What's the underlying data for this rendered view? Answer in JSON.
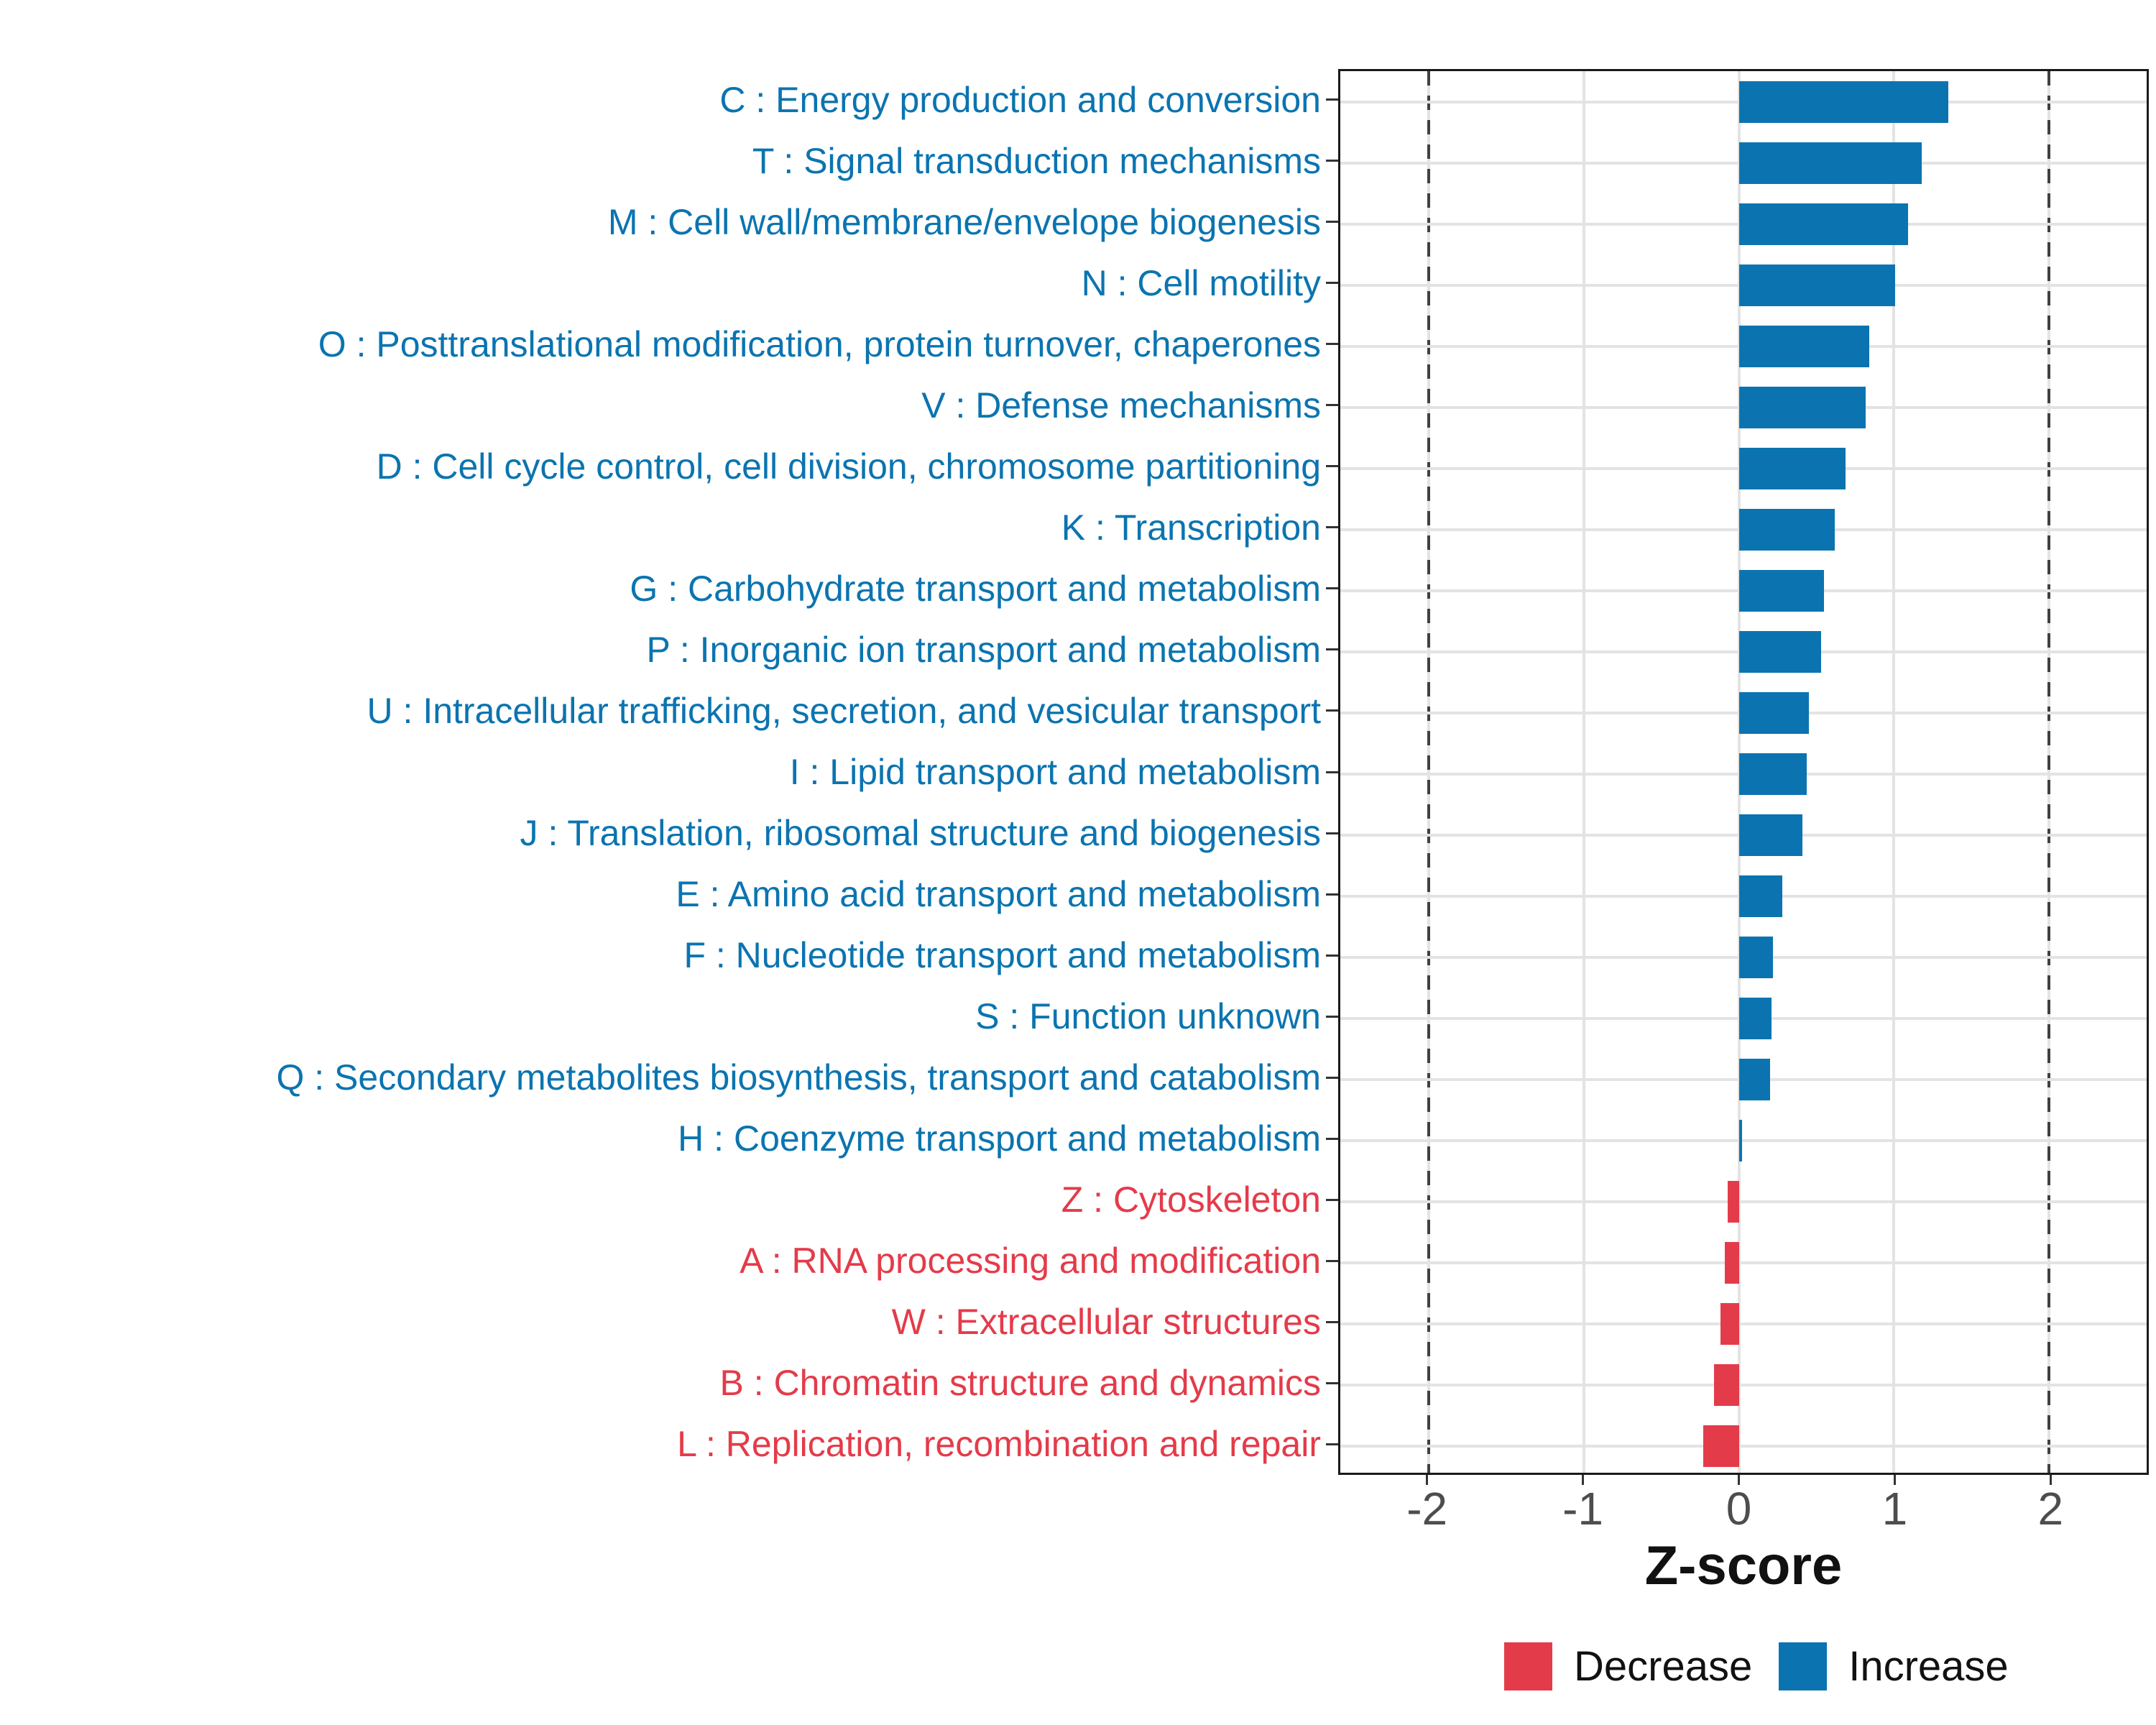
{
  "chart_data": {
    "type": "bar",
    "orientation": "horizontal",
    "xlabel": "Z-score",
    "xlim": [
      -2.57,
      2.63
    ],
    "x_ticks": [
      -2,
      -1,
      0,
      1,
      2
    ],
    "x_tick_labels": [
      "-2",
      "-1",
      "0",
      "1",
      "2"
    ],
    "dashed_guides": [
      -2,
      2
    ],
    "grid": true,
    "legend_position": "bottom-right",
    "bars": [
      {
        "label": "C : Energy production and conversion",
        "value": 1.35,
        "direction": "increase"
      },
      {
        "label": "T : Signal transduction mechanisms",
        "value": 1.18,
        "direction": "increase"
      },
      {
        "label": "M : Cell wall/membrane/envelope biogenesis",
        "value": 1.09,
        "direction": "increase"
      },
      {
        "label": "N : Cell motility",
        "value": 1.01,
        "direction": "increase"
      },
      {
        "label": "O : Posttranslational modification, protein turnover, chaperones",
        "value": 0.84,
        "direction": "increase"
      },
      {
        "label": "V : Defense mechanisms",
        "value": 0.82,
        "direction": "increase"
      },
      {
        "label": "D : Cell cycle control, cell division, chromosome partitioning",
        "value": 0.69,
        "direction": "increase"
      },
      {
        "label": "K : Transcription",
        "value": 0.62,
        "direction": "increase"
      },
      {
        "label": "G : Carbohydrate transport and metabolism",
        "value": 0.55,
        "direction": "increase"
      },
      {
        "label": "P : Inorganic ion transport and metabolism",
        "value": 0.53,
        "direction": "increase"
      },
      {
        "label": "U : Intracellular trafficking, secretion, and vesicular transport",
        "value": 0.45,
        "direction": "increase"
      },
      {
        "label": "I : Lipid transport and metabolism",
        "value": 0.44,
        "direction": "increase"
      },
      {
        "label": "J : Translation, ribosomal structure and biogenesis",
        "value": 0.41,
        "direction": "increase"
      },
      {
        "label": "E : Amino acid transport and metabolism",
        "value": 0.28,
        "direction": "increase"
      },
      {
        "label": "F : Nucleotide transport and metabolism",
        "value": 0.22,
        "direction": "increase"
      },
      {
        "label": "S : Function unknown",
        "value": 0.21,
        "direction": "increase"
      },
      {
        "label": "Q : Secondary metabolites biosynthesis, transport and catabolism",
        "value": 0.2,
        "direction": "increase"
      },
      {
        "label": "H : Coenzyme transport and metabolism",
        "value": 0.02,
        "direction": "increase"
      },
      {
        "label": "Z : Cytoskeleton",
        "value": -0.07,
        "direction": "decrease"
      },
      {
        "label": "A : RNA processing and modification",
        "value": -0.09,
        "direction": "decrease"
      },
      {
        "label": "W : Extracellular structures",
        "value": -0.12,
        "direction": "decrease"
      },
      {
        "label": "B : Chromatin structure and dynamics",
        "value": -0.16,
        "direction": "decrease"
      },
      {
        "label": "L : Replication, recombination and repair",
        "value": -0.23,
        "direction": "decrease"
      }
    ]
  },
  "legend": {
    "decrease_label": "Decrease",
    "increase_label": "Increase"
  },
  "colors": {
    "increase": "#0B74B0",
    "decrease": "#E43B4A",
    "grid": "#E3E3E3",
    "dashed_guide": "#404040",
    "axis_text": "#4D4D4D",
    "axis_line": "#1A1A1A"
  }
}
